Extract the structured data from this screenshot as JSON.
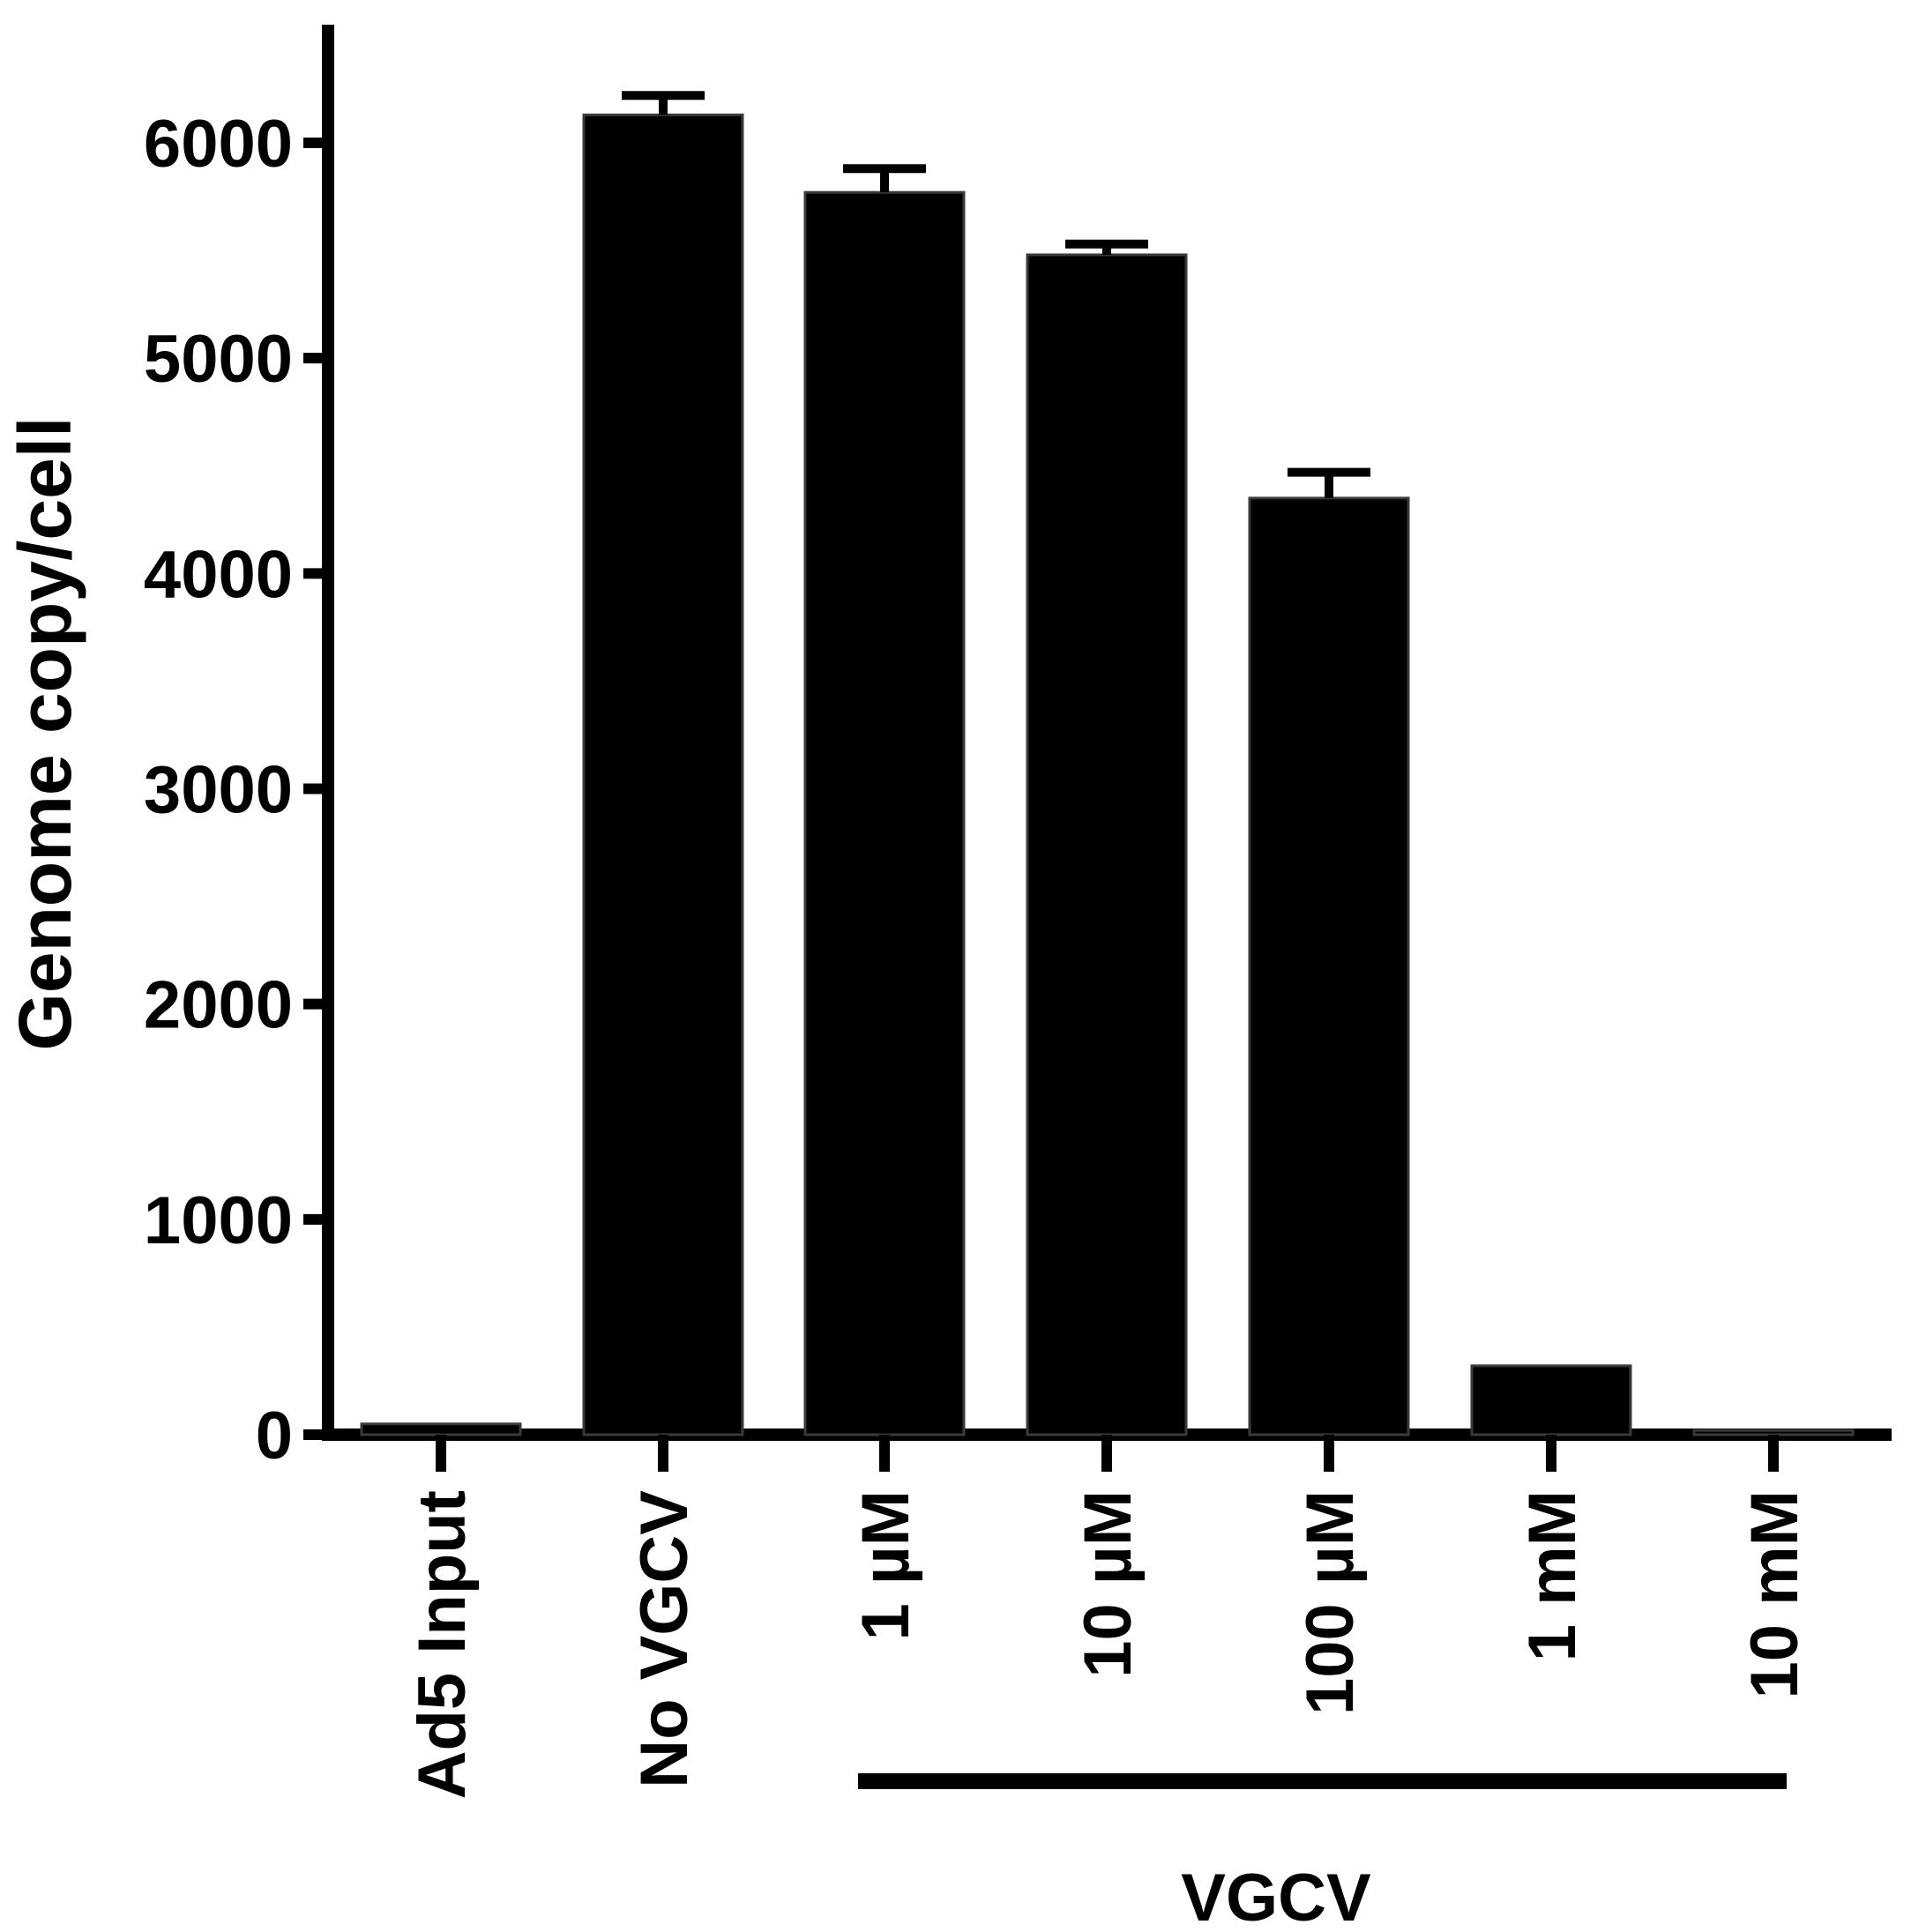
{
  "chart_data": {
    "type": "bar",
    "title": "",
    "xlabel": "",
    "ylabel": "Genome copy/cell",
    "ylim": [
      0,
      6500
    ],
    "yticks": [
      0,
      1000,
      2000,
      3000,
      4000,
      5000,
      6000
    ],
    "ytick_labels": [
      "0",
      "1000",
      "2000",
      "3000",
      "4000",
      "5000",
      "6000"
    ],
    "grid": false,
    "legend": "none",
    "bar_color": "#000000",
    "categories": [
      "Ad5 Input",
      "No VGCV",
      "1  µM",
      "10  µM",
      "100  µM",
      "1 mM",
      "10 mM"
    ],
    "values": [
      50,
      6130,
      5770,
      5480,
      4350,
      320,
      20
    ],
    "errors": [
      0,
      90,
      110,
      50,
      120,
      0,
      0
    ],
    "group": {
      "label": "VGCV",
      "members": [
        "1  µM",
        "10  µM",
        "100  µM",
        "1 mM",
        "10 mM"
      ]
    }
  }
}
